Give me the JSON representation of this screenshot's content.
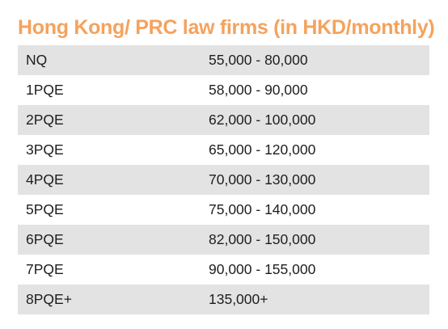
{
  "title": "Hong Kong/ PRC law firms (in HKD/monthly)",
  "colors": {
    "title": "#f5a25d",
    "row_shade": "#e3e3e3",
    "text": "#1e1e1e"
  },
  "rows": [
    {
      "level": "NQ",
      "range": "55,000 - 80,000"
    },
    {
      "level": "1PQE",
      "range": "58,000 - 90,000"
    },
    {
      "level": "2PQE",
      "range": "62,000 - 100,000"
    },
    {
      "level": "3PQE",
      "range": "65,000 - 120,000"
    },
    {
      "level": "4PQE",
      "range": "70,000 - 130,000"
    },
    {
      "level": "5PQE",
      "range": "75,000 - 140,000"
    },
    {
      "level": "6PQE",
      "range": "82,000 - 150,000"
    },
    {
      "level": "7PQE",
      "range": "90,000 - 155,000"
    },
    {
      "level": "8PQE+",
      "range": "135,000+"
    }
  ]
}
